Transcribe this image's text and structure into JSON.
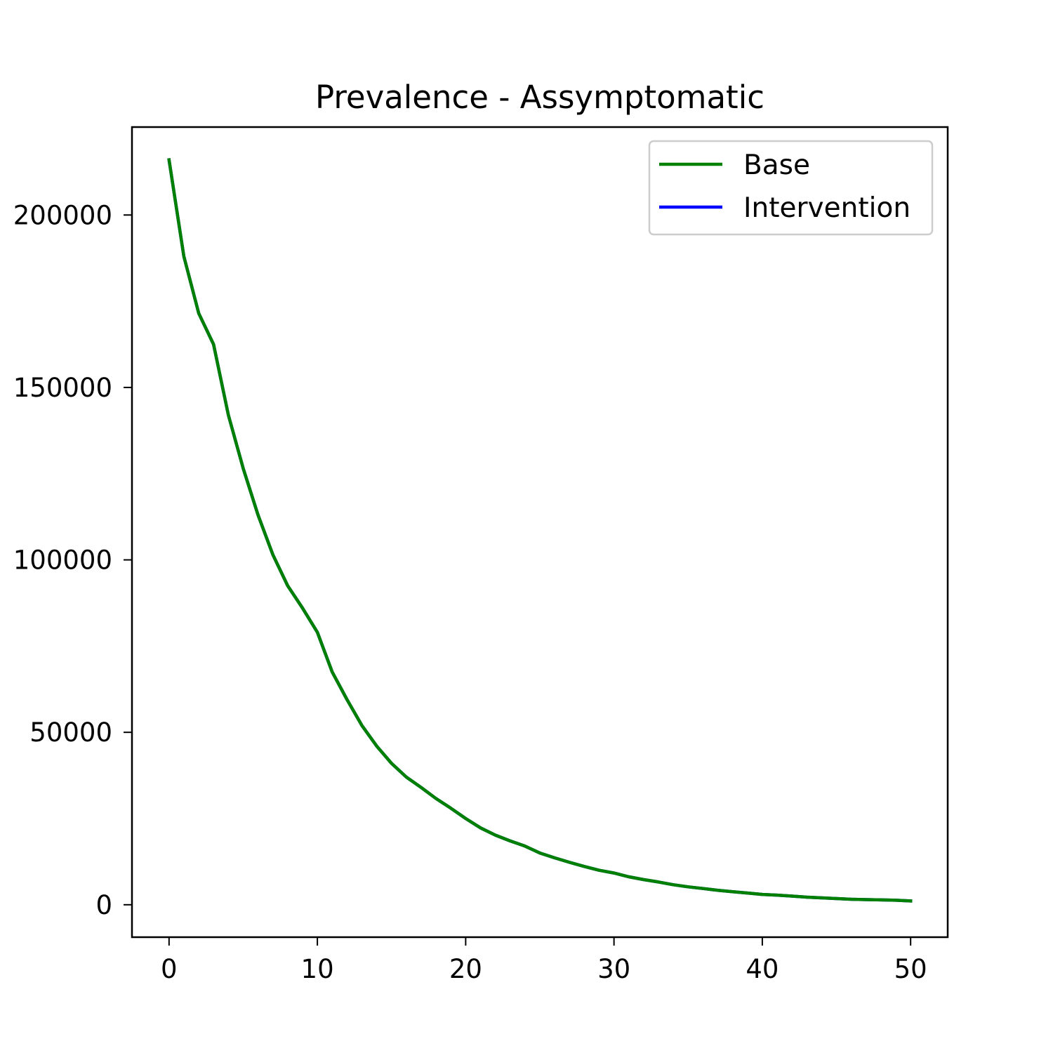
{
  "chart_data": {
    "type": "line",
    "title": "Prevalence - Assymptomatic",
    "xlabel": "",
    "ylabel": "",
    "xlim": [
      -2.5,
      52.5
    ],
    "ylim": [
      -9400,
      225500
    ],
    "xticks": [
      0,
      10,
      20,
      30,
      40,
      50
    ],
    "yticks": [
      0,
      50000,
      100000,
      150000,
      200000
    ],
    "grid": false,
    "legend_position": "top-right",
    "x": [
      0,
      1,
      2,
      3,
      4,
      5,
      6,
      7,
      8,
      9,
      10,
      11,
      12,
      13,
      14,
      15,
      16,
      17,
      18,
      19,
      20,
      21,
      22,
      23,
      24,
      25,
      26,
      27,
      28,
      29,
      30,
      31,
      32,
      33,
      34,
      35,
      36,
      37,
      38,
      39,
      40,
      41,
      42,
      43,
      44,
      45,
      46,
      47,
      48,
      49,
      50
    ],
    "series": [
      {
        "name": "Intervention",
        "color": "#0000ff",
        "values": [
          216000,
          188000,
          171500,
          162500,
          142000,
          126500,
          113000,
          101500,
          92500,
          86000,
          79000,
          67500,
          59500,
          52000,
          46000,
          41000,
          37000,
          34000,
          30800,
          28000,
          25000,
          22300,
          20200,
          18500,
          17000,
          15000,
          13600,
          12300,
          11100,
          10000,
          9200,
          8100,
          7300,
          6600,
          5800,
          5200,
          4700,
          4200,
          3800,
          3400,
          3000,
          2800,
          2500,
          2200,
          2000,
          1800,
          1600,
          1500,
          1400,
          1300,
          1100
        ]
      },
      {
        "name": "Base",
        "color": "#008000",
        "values": [
          216000,
          188000,
          171500,
          162500,
          142000,
          126500,
          113000,
          101500,
          92500,
          86000,
          79000,
          67500,
          59500,
          52000,
          46000,
          41000,
          37000,
          34000,
          30800,
          28000,
          25000,
          22300,
          20200,
          18500,
          17000,
          15000,
          13600,
          12300,
          11100,
          10000,
          9200,
          8100,
          7300,
          6600,
          5800,
          5200,
          4700,
          4200,
          3800,
          3400,
          3000,
          2800,
          2500,
          2200,
          2000,
          1800,
          1600,
          1500,
          1400,
          1300,
          1100
        ]
      }
    ],
    "legend": [
      {
        "label": "Base",
        "color": "#008000"
      },
      {
        "label": "Intervention",
        "color": "#0000ff"
      }
    ]
  }
}
